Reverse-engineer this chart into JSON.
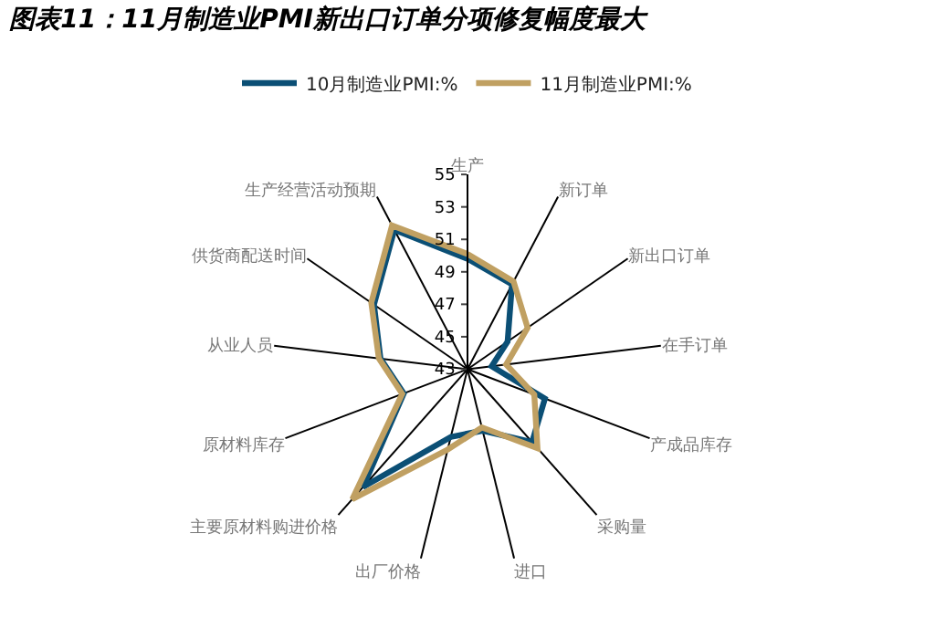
{
  "chart_data": {
    "type": "radar",
    "title": "图表11：11月制造业PMI新出口订单分项修复幅度最大",
    "categories": [
      "生产",
      "新订单",
      "新出口订单",
      "在手订单",
      "产成品库存",
      "采购量",
      "进口",
      "出厂价格",
      "主要原材料购进价格",
      "原材料库存",
      "从业人员",
      "供货商配送时间",
      "生产经营活动预期"
    ],
    "series": [
      {
        "name": "10月制造业PMI:%",
        "color": "#0b4f75",
        "values": [
          49.8,
          48.9,
          46.0,
          44.5,
          48.1,
          49.0,
          46.9,
          47.3,
          52.7,
          47.2,
          48.4,
          50.0,
          52.7
        ]
      },
      {
        "name": "11月制造业PMI:%",
        "color": "#c0a062",
        "values": [
          50.1,
          49.1,
          47.5,
          45.4,
          47.4,
          49.5,
          46.7,
          48.1,
          53.7,
          47.3,
          48.5,
          50.2,
          53.0
        ]
      }
    ],
    "ylim": [
      43,
      55
    ],
    "yticks": [
      43,
      45,
      47,
      49,
      51,
      53,
      55
    ],
    "grid": "x",
    "legend": "top",
    "marker": "none",
    "line_style": "solid"
  }
}
